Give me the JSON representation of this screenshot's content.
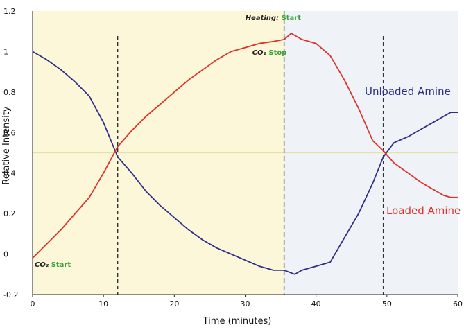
{
  "chart_data": {
    "type": "line",
    "title": "",
    "xlabel": "Time (minutes)",
    "ylabel": "Relative Intensity",
    "xlim": [
      0,
      60
    ],
    "ylim": [
      -0.2,
      1.2
    ],
    "x_ticks": [
      "0",
      "10",
      "20",
      "30",
      "40",
      "50",
      "60"
    ],
    "y_ticks": [
      "-0.2",
      "0",
      "0.2",
      "0.4",
      "0.6",
      "0.8",
      "1",
      "1.2"
    ],
    "regions": [
      {
        "name": "co2-loading",
        "x_start": 0,
        "x_end": 35.5,
        "color": "#fbf7d8"
      },
      {
        "name": "heating",
        "x_start": 35.5,
        "x_end": 60,
        "color": "#eff3f8"
      }
    ],
    "reference_lines": [
      {
        "name": "half-intensity",
        "orientation": "horizontal",
        "value": 0.5,
        "color": "#e4e2a8",
        "style": "solid"
      },
      {
        "name": "crossover-1",
        "orientation": "vertical",
        "value": 12,
        "color": "#333333",
        "style": "dashed"
      },
      {
        "name": "heating-start",
        "orientation": "vertical",
        "value": 35.5,
        "color": "#777777",
        "style": "dashed"
      },
      {
        "name": "crossover-2",
        "orientation": "vertical",
        "value": 49.5,
        "color": "#333333",
        "style": "dashed"
      }
    ],
    "annotations": [
      {
        "name": "heating-start",
        "label": "Heating:",
        "status": "Start",
        "x": 35.5,
        "y": 1.2
      },
      {
        "name": "co2-stop",
        "label": "CO₂",
        "status": "Stop",
        "x": 35.5,
        "y": 1.06
      },
      {
        "name": "co2-start",
        "label": "CO₂",
        "status": "Start",
        "x": 0,
        "y": -0.08
      }
    ],
    "series": [
      {
        "name": "Unloaded Amine",
        "color": "#2e2e8a",
        "x": [
          0,
          2,
          4,
          6,
          8,
          10,
          12,
          14,
          16,
          18,
          20,
          22,
          24,
          26,
          28,
          30,
          32,
          34,
          35.5,
          37,
          38,
          40,
          42,
          44,
          46,
          48,
          49.5,
          51,
          53,
          55,
          57,
          58,
          59,
          60
        ],
        "values": [
          1.0,
          0.96,
          0.91,
          0.85,
          0.78,
          0.65,
          0.48,
          0.4,
          0.31,
          0.24,
          0.18,
          0.12,
          0.07,
          0.03,
          0.0,
          -0.03,
          -0.06,
          -0.08,
          -0.08,
          -0.1,
          -0.08,
          -0.06,
          -0.04,
          0.08,
          0.2,
          0.35,
          0.48,
          0.55,
          0.58,
          0.62,
          0.66,
          0.68,
          0.7,
          0.7
        ]
      },
      {
        "name": "Loaded Amine",
        "color": "#e0302a",
        "x": [
          0,
          2,
          4,
          6,
          8,
          10,
          12,
          14,
          16,
          18,
          20,
          22,
          24,
          26,
          28,
          30,
          32,
          34,
          35.5,
          36.5,
          38,
          40,
          42,
          44,
          46,
          48,
          49.5,
          51,
          53,
          55,
          57,
          58,
          59,
          60
        ],
        "values": [
          -0.02,
          0.05,
          0.12,
          0.2,
          0.28,
          0.4,
          0.53,
          0.61,
          0.68,
          0.74,
          0.8,
          0.86,
          0.91,
          0.96,
          1.0,
          1.02,
          1.04,
          1.05,
          1.06,
          1.09,
          1.06,
          1.04,
          0.98,
          0.86,
          0.72,
          0.56,
          0.51,
          0.45,
          0.4,
          0.35,
          0.31,
          0.29,
          0.28,
          0.28
        ]
      }
    ]
  }
}
